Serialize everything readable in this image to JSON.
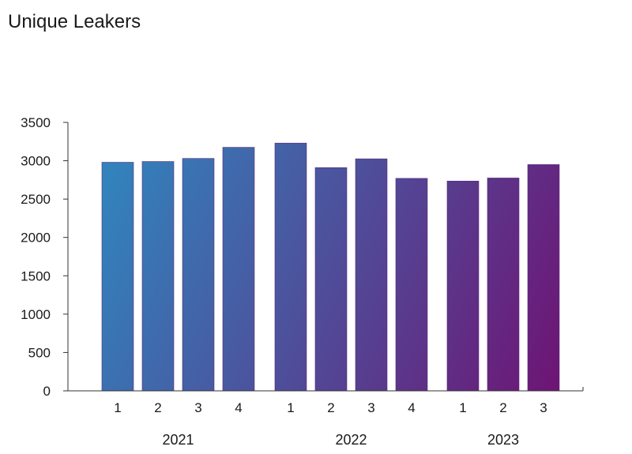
{
  "chart_data": {
    "type": "bar",
    "title": "Unique Leakers",
    "xlabel": "",
    "ylabel": "",
    "ylim": [
      0,
      3500
    ],
    "yticks": [
      0,
      500,
      1000,
      1500,
      2000,
      2500,
      3000,
      3500
    ],
    "grid": false,
    "legend": "none",
    "groups": [
      {
        "label": "2021",
        "categories": [
          "1",
          "2",
          "3",
          "4"
        ],
        "values": [
          2980,
          2990,
          3030,
          3175
        ]
      },
      {
        "label": "2022",
        "categories": [
          "1",
          "2",
          "3",
          "4"
        ],
        "values": [
          3230,
          2910,
          3025,
          2770
        ]
      },
      {
        "label": "2023",
        "categories": [
          "1",
          "2",
          "3"
        ],
        "values": [
          2735,
          2775,
          2950
        ]
      }
    ],
    "gradient": {
      "start": "#3282BC",
      "end": "#6E1474"
    }
  }
}
